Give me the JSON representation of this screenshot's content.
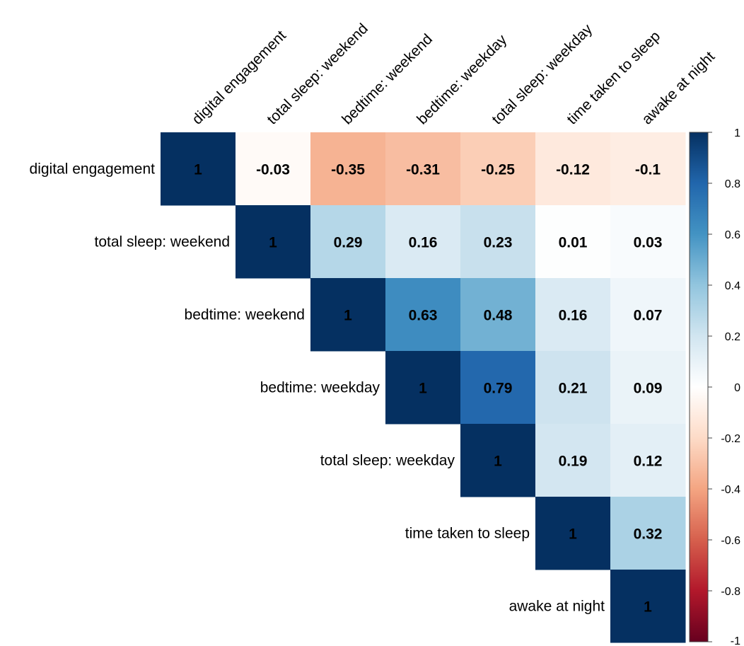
{
  "chart_data": {
    "type": "heatmap",
    "variables": [
      "digital engagement",
      "total sleep: weekend",
      "bedtime: weekend",
      "bedtime: weekday",
      "total sleep: weekday",
      "time taken to sleep",
      "awake at night"
    ],
    "matrix": [
      [
        1,
        -0.03,
        -0.35,
        -0.31,
        -0.25,
        -0.12,
        -0.1
      ],
      [
        -0.03,
        1,
        0.29,
        0.16,
        0.23,
        0.01,
        0.03
      ],
      [
        -0.35,
        0.29,
        1,
        0.63,
        0.48,
        0.16,
        0.07
      ],
      [
        -0.31,
        0.16,
        0.63,
        1,
        0.79,
        0.21,
        0.09
      ],
      [
        -0.25,
        0.23,
        0.48,
        0.79,
        1,
        0.19,
        0.12
      ],
      [
        -0.12,
        0.01,
        0.16,
        0.21,
        0.19,
        1,
        0.32
      ],
      [
        -0.1,
        0.03,
        0.07,
        0.09,
        0.12,
        0.32,
        1
      ]
    ],
    "display": "upper-triangle",
    "colorbar": {
      "range": [
        -1,
        1
      ],
      "ticks": [
        "1",
        "0.8",
        "0.6",
        "0.4",
        "0.2",
        "0",
        "-0.2",
        "-0.4",
        "-0.6",
        "-0.8",
        "-1"
      ],
      "low_color": "#67001f",
      "mid_color": "#ffffff",
      "high_color": "#053061"
    }
  }
}
